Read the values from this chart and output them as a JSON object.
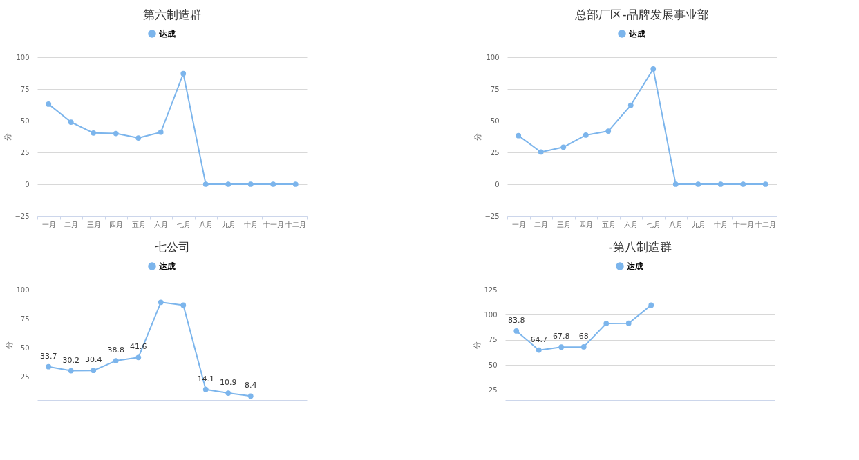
{
  "chart_data": [
    {
      "type": "line",
      "title": "第六制造群",
      "ylabel": "分",
      "categories": [
        "一月",
        "二月",
        "三月",
        "四月",
        "五月",
        "六月",
        "七月",
        "八月",
        "九月",
        "十月",
        "十一月",
        "十二月"
      ],
      "series": [
        {
          "name": "达成",
          "color": "#7cb5ec",
          "values": [
            63.1,
            48.9,
            40.3,
            39.9,
            36.4,
            40.9,
            87.1,
            0,
            0,
            0,
            0,
            0
          ]
        }
      ],
      "ylim": [
        -25,
        100
      ],
      "yticks": [
        -25,
        0,
        25,
        50,
        75,
        100
      ],
      "grid": "y",
      "legend": "top",
      "marker": "circle"
    },
    {
      "type": "line",
      "title": "总部厂区-品牌发展事业部",
      "ylabel": "分",
      "categories": [
        "一月",
        "二月",
        "三月",
        "四月",
        "五月",
        "六月",
        "七月",
        "八月",
        "九月",
        "十月",
        "十一月",
        "十二月"
      ],
      "series": [
        {
          "name": "达成",
          "color": "#7cb5ec",
          "values": [
            38.2,
            25.3,
            29.2,
            38.6,
            41.8,
            62.2,
            90.8,
            0,
            0,
            0,
            0,
            0
          ]
        }
      ],
      "ylim": [
        -25,
        100
      ],
      "yticks": [
        -25,
        0,
        25,
        50,
        75,
        100
      ],
      "grid": "y",
      "legend": "top",
      "marker": "circle"
    },
    {
      "type": "line",
      "title": "七公司",
      "ylabel": "分",
      "categories": [
        null,
        null,
        null,
        null,
        null,
        null,
        null,
        null,
        null,
        null,
        null,
        null
      ],
      "series": [
        {
          "name": "达成",
          "color": "#7cb5ec",
          "values": [
            33.7,
            30.2,
            30.4,
            38.8,
            41.6,
            89.1,
            86.7,
            14.1,
            10.9,
            8.4,
            null,
            null
          ],
          "value_labels": [
            "33.7",
            "30.2",
            "30.4",
            "38.8",
            "41.6",
            null,
            null,
            "14.1",
            "10.9",
            "8.4",
            null,
            null
          ]
        }
      ],
      "ylim": [
        5,
        100
      ],
      "yticks": [
        25,
        50,
        75,
        100
      ],
      "grid": "y",
      "legend": "top",
      "marker": "circle",
      "tick_labels": "y"
    },
    {
      "type": "line",
      "title": "-第八制造群",
      "ylabel": "分",
      "categories": [
        null,
        null,
        null,
        null,
        null,
        null,
        null,
        null,
        null,
        null,
        null,
        null
      ],
      "series": [
        {
          "name": "达成",
          "color": "#7cb5ec",
          "values": [
            83.8,
            64.7,
            67.8,
            68,
            91.3,
            91.5,
            109.6,
            null,
            null,
            null,
            null,
            null
          ],
          "value_labels": [
            "83.8",
            "64.7",
            "67.8",
            "68",
            null,
            null,
            null,
            null,
            null,
            null,
            null,
            null
          ]
        }
      ],
      "ylim": [
        15,
        125
      ],
      "yticks": [
        25,
        50,
        75,
        100,
        125
      ],
      "grid": "y",
      "legend": "top",
      "marker": "circle",
      "tick_labels": "y"
    }
  ]
}
